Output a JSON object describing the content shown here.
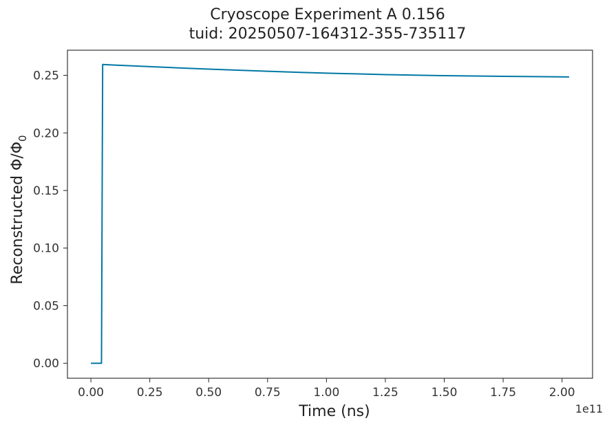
{
  "chart_data": {
    "type": "line",
    "title": [
      "Cryoscope Experiment A 0.156",
      "tuid: 20250507-164312-355-735117"
    ],
    "xlabel": "Time (ns)",
    "ylabel": "Reconstructed Φ/Φ",
    "ylabel_subscript": "0",
    "x_offset_label": "1e11",
    "xlim": [
      -0.0995,
      2.1295
    ],
    "ylim": [
      -0.013,
      0.2718
    ],
    "x_ticks": [
      0.0,
      0.25,
      0.5,
      0.75,
      1.0,
      1.25,
      1.5,
      1.75,
      2.0
    ],
    "x_tick_labels": [
      "0.00",
      "0.25",
      "0.50",
      "0.75",
      "1.00",
      "1.25",
      "1.50",
      "1.75",
      "2.00"
    ],
    "y_ticks": [
      0.0,
      0.05,
      0.1,
      0.15,
      0.2,
      0.25
    ],
    "y_tick_labels": [
      "0.00",
      "0.05",
      "0.10",
      "0.15",
      "0.20",
      "0.25"
    ],
    "grid": false,
    "legend": "none",
    "series": [
      {
        "color": "#0077a4",
        "x": [
          0.0,
          0.045,
          0.05,
          0.1,
          0.2,
          0.3,
          0.4,
          0.5,
          0.6,
          0.75,
          0.9,
          1.0,
          1.25,
          1.5,
          1.75,
          2.03
        ],
        "y": [
          0.0,
          0.0,
          0.2594,
          0.2589,
          0.258,
          0.2571,
          0.2562,
          0.2554,
          0.2546,
          0.2535,
          0.2525,
          0.2519,
          0.2506,
          0.2497,
          0.2491,
          0.2486
        ]
      }
    ]
  }
}
